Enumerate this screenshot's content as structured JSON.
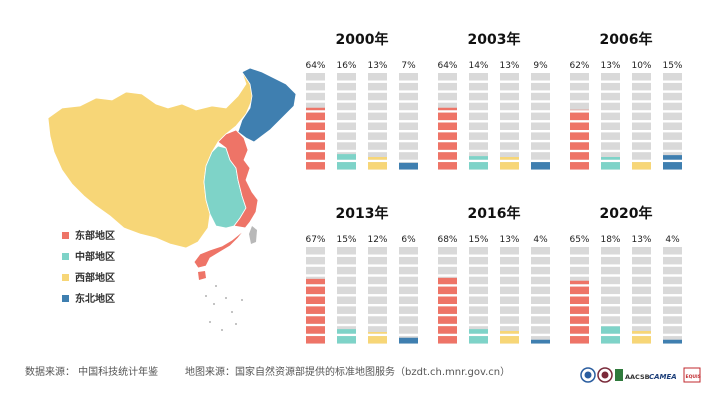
{
  "legend": {
    "items": [
      {
        "label": "东部地区",
        "color": "#ee7467"
      },
      {
        "label": "中部地区",
        "color": "#7ed3c8"
      },
      {
        "label": "西部地区",
        "color": "#f7d677"
      },
      {
        "label": "东北地区",
        "color": "#3f7fb0"
      }
    ]
  },
  "chart_data": [
    {
      "type": "bar",
      "title": "2000年",
      "series": [
        {
          "name": "东部地区",
          "value": 64,
          "label": "64%"
        },
        {
          "name": "中部地区",
          "value": 16,
          "label": "16%"
        },
        {
          "name": "西部地区",
          "value": 13,
          "label": "13%"
        },
        {
          "name": "东北地区",
          "value": 7,
          "label": "7%"
        }
      ],
      "ylim": [
        0,
        100
      ]
    },
    {
      "type": "bar",
      "title": "2003年",
      "series": [
        {
          "name": "东部地区",
          "value": 64,
          "label": "64%"
        },
        {
          "name": "中部地区",
          "value": 14,
          "label": "14%"
        },
        {
          "name": "西部地区",
          "value": 13,
          "label": "13%"
        },
        {
          "name": "东北地区",
          "value": 9,
          "label": "9%"
        }
      ],
      "ylim": [
        0,
        100
      ]
    },
    {
      "type": "bar",
      "title": "2006年",
      "series": [
        {
          "name": "东部地区",
          "value": 62,
          "label": "62%"
        },
        {
          "name": "中部地区",
          "value": 13,
          "label": "13%"
        },
        {
          "name": "西部地区",
          "value": 10,
          "label": "10%"
        },
        {
          "name": "东北地区",
          "value": 15,
          "label": "15%"
        }
      ],
      "ylim": [
        0,
        100
      ]
    },
    {
      "type": "bar",
      "title": "2013年",
      "series": [
        {
          "name": "东部地区",
          "value": 67,
          "label": "67%"
        },
        {
          "name": "中部地区",
          "value": 15,
          "label": "15%"
        },
        {
          "name": "西部地区",
          "value": 12,
          "label": "12%"
        },
        {
          "name": "东北地区",
          "value": 6,
          "label": "6%"
        }
      ],
      "ylim": [
        0,
        100
      ]
    },
    {
      "type": "bar",
      "title": "2016年",
      "series": [
        {
          "name": "东部地区",
          "value": 68,
          "label": "68%"
        },
        {
          "name": "中部地区",
          "value": 15,
          "label": "15%"
        },
        {
          "name": "西部地区",
          "value": 13,
          "label": "13%"
        },
        {
          "name": "东北地区",
          "value": 4,
          "label": "4%"
        }
      ],
      "ylim": [
        0,
        100
      ]
    },
    {
      "type": "bar",
      "title": "2020年",
      "series": [
        {
          "name": "东部地区",
          "value": 65,
          "label": "65%"
        },
        {
          "name": "中部地区",
          "value": 18,
          "label": "18%"
        },
        {
          "name": "西部地区",
          "value": 13,
          "label": "13%"
        },
        {
          "name": "东北地区",
          "value": 4,
          "label": "4%"
        }
      ],
      "ylim": [
        0,
        100
      ]
    }
  ],
  "footer": {
    "data_source": "数据来源： 中国科技统计年鉴",
    "map_source": "地图来源：国家自然资源部提供的标准地图服务（bzdt.ch.mnr.gov.cn）"
  },
  "logos": [
    {
      "name": "university-seal-logo",
      "text": ""
    },
    {
      "name": "institute-seal-logo",
      "text": ""
    },
    {
      "name": "aacsb-logo",
      "text": "AACSB"
    },
    {
      "name": "camea-logo",
      "text": "CAMEA"
    },
    {
      "name": "equis-logo",
      "text": "EQUIS"
    }
  ]
}
